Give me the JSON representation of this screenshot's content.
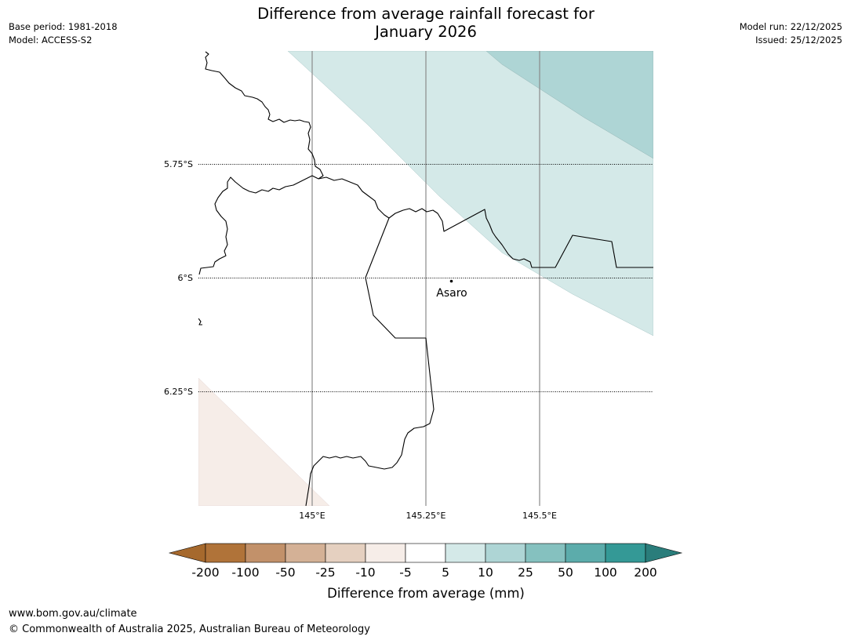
{
  "header": {
    "base_period": "Base period: 1981-2018",
    "model": "Model: ACCESS-S2",
    "title_line1": "Difference from average rainfall forecast for",
    "title_line2": "January 2026",
    "model_run": "Model run: 22/12/2025",
    "issued": "Issued: 25/12/2025"
  },
  "map": {
    "lat_labels": [
      "5.75°S",
      "6°S",
      "6.25°S"
    ],
    "lon_labels": [
      "145°E",
      "145.25°E",
      "145.5°E"
    ],
    "place": {
      "name": "Asaro"
    },
    "colors": {
      "teal_light": "#d4e9e8",
      "teal_mid": "#aed5d5",
      "brown_light": "#f6ede8",
      "boundary": "#000000",
      "grid_lon": "#888888"
    }
  },
  "colorbar": {
    "tick_labels": [
      "-200",
      "-100",
      "-50",
      "-25",
      "-10",
      "-5",
      "5",
      "10",
      "25",
      "50",
      "100",
      "200"
    ],
    "colors": [
      "#a6692d",
      "#b07339",
      "#c2916a",
      "#d4b196",
      "#e5d0c0",
      "#f6ede8",
      "#ffffff",
      "#d4e9e8",
      "#aed5d5",
      "#85c1bf",
      "#5cacab",
      "#349996",
      "#2a7d7b"
    ],
    "label": "Difference from average (mm)"
  },
  "footer": {
    "url": "www.bom.gov.au/climate",
    "copyright": "© Commonwealth of Australia 2025, Australian Bureau of Meteorology"
  }
}
